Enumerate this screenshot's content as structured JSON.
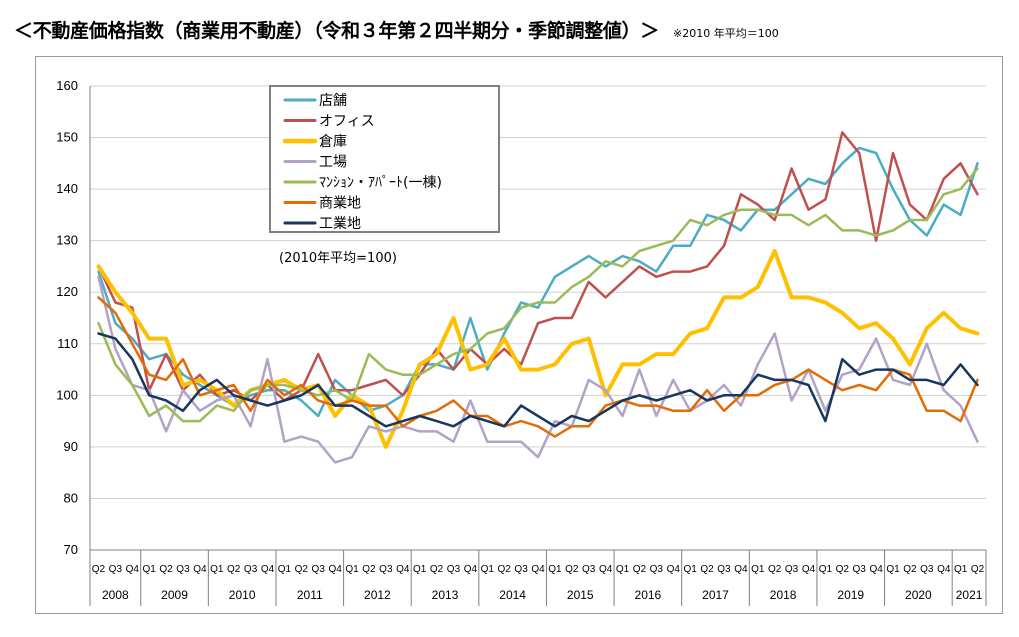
{
  "header": {
    "title": "＜不動産価格指数（商業用不動産）（令和３年第２四半期分・季節調整値）＞",
    "note": "※2010 年平均＝100"
  },
  "chart_data": {
    "type": "line",
    "title": "＜不動産価格指数（商業用不動産）（令和３年第２四半期分・季節調整値）＞",
    "annotation": "(2010年平均=100)",
    "ylim": [
      70,
      160
    ],
    "yticks": [
      70,
      80,
      90,
      100,
      110,
      120,
      130,
      140,
      150,
      160
    ],
    "grid": "horizontal",
    "legend_position": "top-left",
    "quarters": [
      "Q2",
      "Q3",
      "Q4",
      "Q1",
      "Q2",
      "Q3",
      "Q4",
      "Q1",
      "Q2",
      "Q3",
      "Q4",
      "Q1",
      "Q2",
      "Q3",
      "Q4",
      "Q1",
      "Q2",
      "Q3",
      "Q4",
      "Q1",
      "Q2",
      "Q3",
      "Q4",
      "Q1",
      "Q2",
      "Q3",
      "Q4",
      "Q1",
      "Q2",
      "Q3",
      "Q4",
      "Q1",
      "Q2",
      "Q3",
      "Q4",
      "Q1",
      "Q2",
      "Q3",
      "Q4",
      "Q1",
      "Q2",
      "Q3",
      "Q4",
      "Q1",
      "Q2",
      "Q3",
      "Q4",
      "Q1",
      "Q2",
      "Q3",
      "Q4",
      "Q1",
      "Q2"
    ],
    "years": [
      {
        "label": "2008",
        "start": 0,
        "count": 3
      },
      {
        "label": "2009",
        "start": 3,
        "count": 4
      },
      {
        "label": "2010",
        "start": 7,
        "count": 4
      },
      {
        "label": "2011",
        "start": 11,
        "count": 4
      },
      {
        "label": "2012",
        "start": 15,
        "count": 4
      },
      {
        "label": "2013",
        "start": 19,
        "count": 4
      },
      {
        "label": "2014",
        "start": 23,
        "count": 4
      },
      {
        "label": "2015",
        "start": 27,
        "count": 4
      },
      {
        "label": "2016",
        "start": 31,
        "count": 4
      },
      {
        "label": "2017",
        "start": 35,
        "count": 4
      },
      {
        "label": "2018",
        "start": 39,
        "count": 4
      },
      {
        "label": "2019",
        "start": 43,
        "count": 4
      },
      {
        "label": "2020",
        "start": 47,
        "count": 4
      },
      {
        "label": "2021",
        "start": 51,
        "count": 2
      }
    ],
    "series": [
      {
        "name": "店舗",
        "color": "#4bacc6",
        "width": 2.5,
        "values": [
          124,
          114,
          111,
          107,
          108,
          104,
          102,
          100,
          98,
          100,
          101,
          101,
          99,
          96,
          103,
          100,
          97,
          98,
          100,
          106,
          106,
          105,
          115,
          105,
          112,
          118,
          117,
          123,
          125,
          127,
          125,
          127,
          126,
          124,
          129,
          129,
          135,
          134,
          132,
          136,
          136,
          139,
          142,
          141,
          145,
          148,
          147,
          140,
          134,
          131,
          137,
          135,
          145
        ]
      },
      {
        "name": "オフィス",
        "color": "#c0504d",
        "width": 2.5,
        "values": [
          125,
          118,
          117,
          101,
          108,
          101,
          104,
          100,
          101,
          99,
          102,
          99,
          101,
          108,
          101,
          101,
          102,
          103,
          100,
          104,
          109,
          105,
          109,
          106,
          109,
          106,
          114,
          115,
          115,
          122,
          119,
          122,
          125,
          123,
          124,
          124,
          125,
          129,
          139,
          137,
          134,
          144,
          136,
          138,
          151,
          147,
          130,
          147,
          137,
          134,
          142,
          145,
          139
        ]
      },
      {
        "name": "倉庫",
        "color": "#ffc000",
        "width": 4,
        "values": [
          125,
          120,
          116,
          111,
          111,
          102,
          103,
          101,
          98,
          101,
          102,
          103,
          101,
          102,
          96,
          100,
          98,
          90,
          97,
          106,
          108,
          115,
          105,
          106,
          111,
          105,
          105,
          106,
          110,
          111,
          100,
          106,
          106,
          108,
          108,
          112,
          113,
          119,
          119,
          121,
          128,
          119,
          119,
          118,
          116,
          113,
          114,
          111,
          106,
          113,
          116,
          113,
          112
        ]
      },
      {
        "name": "工場",
        "color": "#b3a2c7",
        "width": 2.5,
        "values": [
          123,
          109,
          102,
          101,
          93,
          101,
          97,
          99,
          100,
          94,
          107,
          91,
          92,
          91,
          87,
          88,
          94,
          93,
          94,
          93,
          93,
          91,
          99,
          91,
          91,
          91,
          88,
          95,
          94,
          103,
          101,
          96,
          105,
          96,
          103,
          97,
          99,
          102,
          98,
          106,
          112,
          99,
          105,
          97,
          104,
          105,
          111,
          103,
          102,
          110,
          101,
          98,
          91
        ]
      },
      {
        "name": "ﾏﾝｼｮﾝ・ｱﾊﾟｰﾄ(一棟)",
        "color": "#9bbb59",
        "width": 2.5,
        "values": [
          114,
          106,
          102,
          96,
          98,
          95,
          95,
          98,
          97,
          101,
          102,
          102,
          101,
          100,
          101,
          99,
          108,
          105,
          104,
          104,
          106,
          108,
          109,
          112,
          113,
          117,
          118,
          118,
          121,
          123,
          126,
          125,
          128,
          129,
          130,
          134,
          133,
          135,
          136,
          136,
          135,
          135,
          133,
          135,
          132,
          132,
          131,
          132,
          134,
          134,
          139,
          140,
          144
        ]
      },
      {
        "name": "商業地",
        "color": "#e36c09",
        "width": 2.5,
        "values": [
          119,
          116,
          110,
          104,
          103,
          107,
          100,
          101,
          102,
          97,
          103,
          100,
          102,
          99,
          98,
          99,
          98,
          98,
          94,
          96,
          97,
          99,
          96,
          96,
          94,
          95,
          94,
          92,
          94,
          94,
          98,
          99,
          98,
          98,
          97,
          97,
          101,
          97,
          100,
          100,
          102,
          103,
          105,
          103,
          101,
          102,
          101,
          105,
          104,
          97,
          97,
          95,
          103
        ]
      },
      {
        "name": "工業地",
        "color": "#17375e",
        "width": 2.5,
        "values": [
          112,
          111,
          107,
          100,
          99,
          97,
          101,
          103,
          100,
          99,
          98,
          99,
          100,
          102,
          98,
          98,
          96,
          94,
          95,
          96,
          95,
          94,
          96,
          95,
          94,
          98,
          96,
          94,
          96,
          95,
          97,
          99,
          100,
          99,
          100,
          101,
          99,
          100,
          100,
          104,
          103,
          103,
          102,
          95,
          107,
          104,
          105,
          105,
          103,
          103,
          102,
          106,
          102
        ]
      }
    ]
  }
}
